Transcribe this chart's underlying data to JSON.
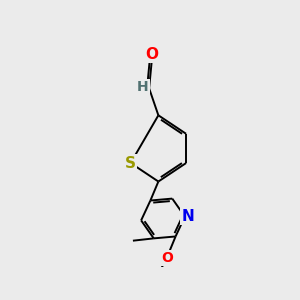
{
  "background_color": "#ebebeb",
  "bond_color": "#000000",
  "atom_colors": {
    "O": "#ff0000",
    "S": "#999900",
    "N": "#0000ee",
    "H": "#507070",
    "C": "#000000"
  },
  "font_size": 10,
  "fig_size": [
    3.0,
    3.0
  ],
  "dpi": 100,
  "lw": 1.4
}
